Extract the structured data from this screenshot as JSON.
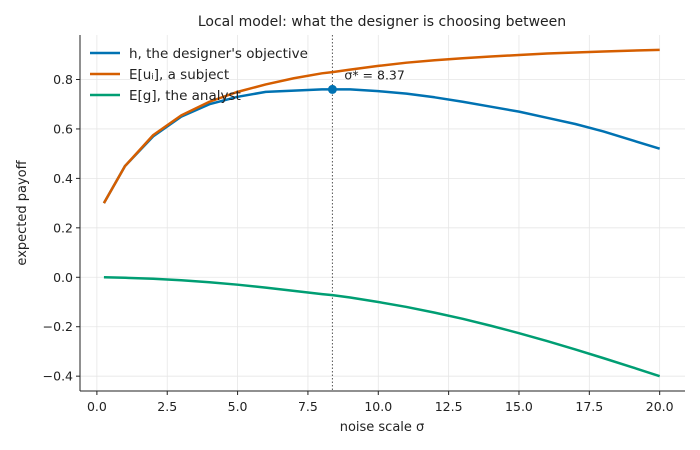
{
  "chart_data": {
    "type": "line",
    "title": "Local model: what the designer is choosing between",
    "xlabel": "noise scale σ",
    "ylabel": "expected payoff",
    "xlim": [
      -0.6,
      20.9
    ],
    "ylim": [
      -0.46,
      0.98
    ],
    "xticks": [
      0,
      2.5,
      5,
      7.5,
      10,
      12.5,
      15,
      17.5,
      20
    ],
    "xtick_labels": [
      "0.0",
      "2.5",
      "5.0",
      "7.5",
      "10.0",
      "12.5",
      "15.0",
      "17.5",
      "20.0"
    ],
    "yticks": [
      -0.4,
      -0.2,
      0.0,
      0.2,
      0.4,
      0.6,
      0.8
    ],
    "ytick_labels": [
      "−0.4",
      "−0.2",
      "0.0",
      "0.2",
      "0.4",
      "0.6",
      "0.8"
    ],
    "grid": true,
    "legend_position": "top-left",
    "x": [
      0.25,
      1,
      2,
      3,
      4,
      5,
      6,
      7,
      8,
      8.37,
      9,
      10,
      11,
      12,
      13,
      14,
      15,
      16,
      17,
      18,
      19,
      20
    ],
    "series": [
      {
        "name": "h, the designer's objective",
        "color": "#0072b2",
        "values": [
          0.3,
          0.45,
          0.57,
          0.65,
          0.7,
          0.73,
          0.75,
          0.755,
          0.76,
          0.76,
          0.76,
          0.753,
          0.743,
          0.728,
          0.71,
          0.69,
          0.67,
          0.645,
          0.62,
          0.59,
          0.555,
          0.52
        ]
      },
      {
        "name": "E[uᵢ], a subject",
        "color": "#d55e00",
        "values": [
          0.3,
          0.45,
          0.575,
          0.655,
          0.71,
          0.75,
          0.78,
          0.805,
          0.825,
          0.83,
          0.84,
          0.855,
          0.868,
          0.878,
          0.886,
          0.893,
          0.899,
          0.905,
          0.909,
          0.913,
          0.917,
          0.92
        ]
      },
      {
        "name": "E[g], the analyst",
        "color": "#009e73",
        "values": [
          0.0,
          -0.002,
          -0.006,
          -0.012,
          -0.02,
          -0.03,
          -0.042,
          -0.055,
          -0.068,
          -0.072,
          -0.082,
          -0.1,
          -0.12,
          -0.143,
          -0.168,
          -0.196,
          -0.226,
          -0.258,
          -0.292,
          -0.327,
          -0.363,
          -0.4
        ]
      }
    ],
    "marker": {
      "x": 8.37,
      "y": 0.76,
      "color": "#0072b2"
    },
    "vline_x": 8.37,
    "annotation": {
      "text": "σ* = 8.37",
      "x": 8.37,
      "y": 0.82
    }
  }
}
